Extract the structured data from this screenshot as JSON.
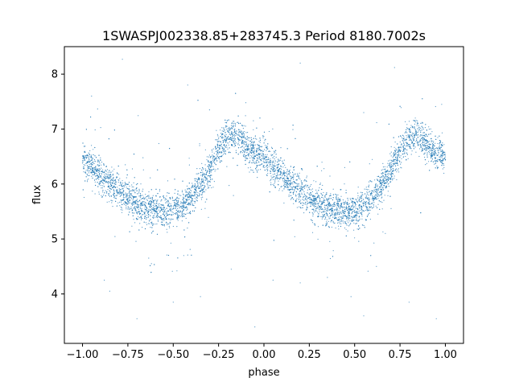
{
  "chart_data": {
    "type": "scatter",
    "title": "1SWASPJ002338.85+283745.3 Period 8180.7002s",
    "xlabel": "phase",
    "ylabel": "flux",
    "xlim": [
      -1.1,
      1.1
    ],
    "ylim": [
      3.1,
      8.5
    ],
    "xticks": [
      -1.0,
      -0.75,
      -0.5,
      -0.25,
      0.0,
      0.25,
      0.5,
      0.75,
      1.0
    ],
    "xtick_labels": [
      "−1.00",
      "−0.75",
      "−0.50",
      "−0.25",
      "0.00",
      "0.25",
      "0.50",
      "0.75",
      "1.00"
    ],
    "yticks": [
      4,
      5,
      6,
      7,
      8
    ],
    "ytick_labels": [
      "4",
      "5",
      "6",
      "7",
      "8"
    ],
    "grid": false,
    "marker_color": "#1f77b4",
    "series": [
      {
        "profile": {
          "phase": [
            0.0,
            0.05,
            0.1,
            0.15,
            0.2,
            0.25,
            0.3,
            0.35,
            0.4,
            0.45,
            0.5,
            0.55,
            0.6,
            0.65,
            0.7,
            0.75,
            0.8,
            0.85,
            0.9,
            0.95,
            1.0
          ],
          "flux": [
            6.5,
            6.3,
            6.15,
            6.0,
            5.88,
            5.75,
            5.65,
            5.57,
            5.52,
            5.5,
            5.52,
            5.6,
            5.75,
            5.98,
            6.25,
            6.6,
            6.85,
            6.9,
            6.7,
            6.55,
            6.5
          ]
        },
        "points": [
          [
            -1.0,
            6.38
          ],
          [
            -0.98,
            6.25
          ],
          [
            -0.95,
            6.2
          ],
          [
            -0.9,
            6.05
          ],
          [
            -0.85,
            5.92
          ],
          [
            -0.8,
            5.85
          ],
          [
            -0.75,
            5.72
          ],
          [
            -0.7,
            5.62
          ],
          [
            -0.65,
            5.58
          ],
          [
            -0.6,
            5.52
          ],
          [
            -0.55,
            5.5
          ],
          [
            -0.5,
            5.55
          ],
          [
            -0.45,
            5.6
          ],
          [
            -0.4,
            5.78
          ],
          [
            -0.35,
            5.95
          ],
          [
            -0.3,
            6.25
          ],
          [
            -0.25,
            6.55
          ],
          [
            -0.2,
            6.85
          ],
          [
            -0.15,
            6.9
          ],
          [
            -0.1,
            6.72
          ],
          [
            -0.05,
            6.55
          ],
          [
            0.0,
            6.45
          ],
          [
            0.05,
            6.3
          ],
          [
            0.1,
            6.15
          ],
          [
            0.15,
            6.0
          ],
          [
            0.2,
            5.88
          ],
          [
            0.25,
            5.75
          ],
          [
            0.3,
            5.65
          ],
          [
            0.35,
            5.57
          ],
          [
            0.4,
            5.52
          ],
          [
            0.45,
            5.5
          ],
          [
            0.5,
            5.52
          ],
          [
            0.55,
            5.6
          ],
          [
            0.6,
            5.75
          ],
          [
            0.65,
            5.98
          ],
          [
            0.7,
            6.25
          ],
          [
            0.75,
            6.6
          ],
          [
            0.8,
            6.85
          ],
          [
            0.85,
            6.9
          ],
          [
            0.9,
            6.7
          ],
          [
            0.95,
            6.55
          ],
          [
            1.0,
            6.45
          ],
          [
            -0.78,
            8.27
          ],
          [
            -0.42,
            7.8
          ],
          [
            0.2,
            8.2
          ],
          [
            0.72,
            8.12
          ],
          [
            -0.95,
            7.6
          ],
          [
            0.98,
            7.45
          ],
          [
            -0.3,
            7.35
          ],
          [
            0.55,
            7.3
          ],
          [
            -0.88,
            4.25
          ],
          [
            -0.85,
            4.05
          ],
          [
            -0.7,
            3.55
          ],
          [
            -0.5,
            3.85
          ],
          [
            -0.35,
            3.95
          ],
          [
            0.05,
            4.25
          ],
          [
            0.2,
            4.2
          ],
          [
            0.48,
            3.95
          ],
          [
            0.55,
            3.6
          ],
          [
            0.8,
            3.85
          ],
          [
            0.95,
            3.55
          ],
          [
            -0.05,
            3.4
          ],
          [
            0.35,
            4.3
          ],
          [
            -0.62,
            4.55
          ],
          [
            -0.18,
            4.45
          ],
          [
            0.62,
            4.5
          ]
        ]
      }
    ]
  }
}
